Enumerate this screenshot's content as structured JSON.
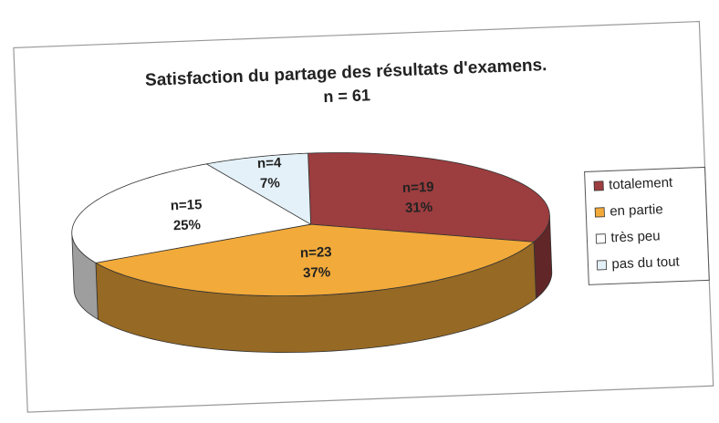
{
  "chart_data": {
    "type": "pie",
    "title": "Satisfaction du partage des résultats d'examens.",
    "subtitle": "n = 61",
    "categories": [
      "totalement",
      "en partie",
      "très peu",
      "pas du tout"
    ],
    "values": [
      31,
      37,
      25,
      7
    ],
    "value_labels": [
      "31%",
      "37%",
      "25%",
      "7%"
    ],
    "counts": [
      19,
      23,
      15,
      4
    ],
    "count_labels": [
      "n=19",
      "n=23",
      "n=15",
      "n=4"
    ],
    "colors": [
      "#9c3d3f",
      "#f2aa3a",
      "#ffffff",
      "#e4f1f8"
    ],
    "legend": "right"
  }
}
